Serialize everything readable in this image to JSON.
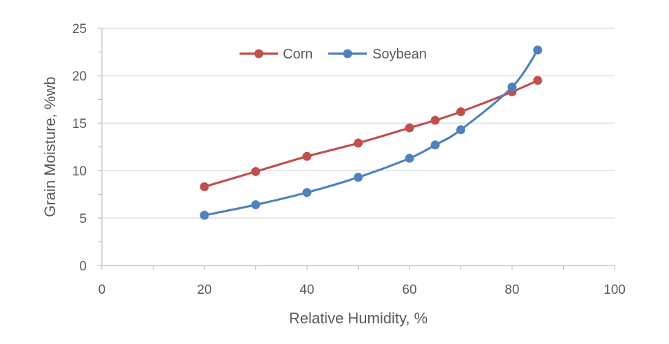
{
  "chart_data": {
    "type": "line",
    "title": "",
    "xlabel": "Relative Humidity, %",
    "ylabel": "Grain Moisture, %wb",
    "xlim": [
      0,
      100
    ],
    "ylim": [
      0,
      25
    ],
    "x_ticks": [
      0,
      20,
      40,
      60,
      80,
      100
    ],
    "y_ticks": [
      0,
      5,
      10,
      15,
      20,
      25
    ],
    "x_tick_labels": [
      "0",
      "20",
      "40",
      "60",
      "80",
      "100"
    ],
    "y_tick_labels": [
      "0",
      "5",
      "10",
      "15",
      "20",
      "25"
    ],
    "grid": "horizontal",
    "legend_position": "top-center",
    "smooth": true,
    "series": [
      {
        "name": "Corn",
        "color": "#C0504D",
        "x": [
          20,
          30,
          40,
          50,
          60,
          65,
          70,
          80,
          85
        ],
        "y": [
          8.3,
          9.9,
          11.5,
          12.9,
          14.5,
          15.3,
          16.2,
          18.3,
          19.5
        ]
      },
      {
        "name": "Soybean",
        "color": "#4F81BD",
        "x": [
          20,
          30,
          40,
          50,
          60,
          65,
          70,
          80,
          85
        ],
        "y": [
          5.3,
          6.4,
          7.7,
          9.3,
          11.3,
          12.7,
          14.3,
          18.8,
          22.7
        ]
      }
    ]
  }
}
